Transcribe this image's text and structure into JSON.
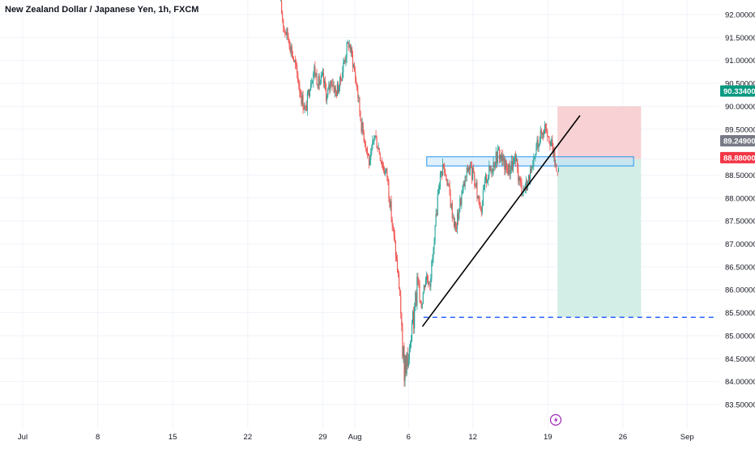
{
  "chart_data": {
    "type": "candlestick",
    "title": "New Zealand Dollar / Japanese Yen, 1h, FXCM",
    "colors": {
      "up": "#26a69a",
      "down": "#ef5350",
      "trendline": "#000000",
      "target_line": "#2962ff",
      "zone_border": "#2196f3",
      "stop_zone": "#f7cfd1",
      "profit_zone": "#d1ece6",
      "price_badge_green": "#089981",
      "price_badge_gray": "#787b86",
      "price_badge_red": "#f23645",
      "event_icon": "#9c27b0"
    },
    "x_axis": {
      "ticks": [
        {
          "label": "Jul",
          "day": 1
        },
        {
          "label": "8",
          "day": 8
        },
        {
          "label": "15",
          "day": 15
        },
        {
          "label": "22",
          "day": 22
        },
        {
          "label": "29",
          "day": 29
        },
        {
          "label": "Aug",
          "day": 32
        },
        {
          "label": "6",
          "day": 37
        },
        {
          "label": "12",
          "day": 43
        },
        {
          "label": "19",
          "day": 50
        },
        {
          "label": "26",
          "day": 57
        },
        {
          "label": "Sep",
          "day": 63
        }
      ]
    },
    "y_axis": {
      "ylim": [
        83.3,
        92.2
      ],
      "ticks": [
        "92.00000",
        "91.50000",
        "91.00000",
        "90.50000",
        "90.00000",
        "89.50000",
        "88.85300",
        "88.50000",
        "88.00000",
        "87.50000",
        "87.00000",
        "86.50000",
        "86.00000",
        "85.50000",
        "85.00000",
        "84.50000",
        "84.00000",
        "83.50000"
      ],
      "price_labels": [
        {
          "value": "90.33400",
          "color": "#089981"
        },
        {
          "value": "89.24900",
          "color": "#787b86"
        },
        {
          "value": "88.88000",
          "color": "#f23645"
        }
      ]
    },
    "price_path": [
      [
        25.0,
        92.3
      ],
      [
        25.4,
        91.7
      ],
      [
        25.8,
        91.5
      ],
      [
        26.2,
        91.1
      ],
      [
        26.6,
        90.7
      ],
      [
        27.0,
        90.2
      ],
      [
        27.4,
        89.9
      ],
      [
        27.8,
        90.5
      ],
      [
        28.2,
        90.8
      ],
      [
        28.6,
        90.5
      ],
      [
        29.0,
        90.6
      ],
      [
        29.4,
        90.2
      ],
      [
        29.8,
        90.6
      ],
      [
        30.2,
        90.3
      ],
      [
        30.6,
        90.5
      ],
      [
        31.0,
        91.0
      ],
      [
        31.4,
        91.4
      ],
      [
        31.8,
        91.0
      ],
      [
        32.2,
        90.4
      ],
      [
        32.6,
        89.6
      ],
      [
        33.0,
        89.2
      ],
      [
        33.4,
        88.7
      ],
      [
        33.8,
        89.4
      ],
      [
        34.2,
        89.1
      ],
      [
        34.6,
        88.7
      ],
      [
        35.0,
        88.5
      ],
      [
        35.4,
        87.6
      ],
      [
        35.8,
        86.8
      ],
      [
        36.2,
        85.9
      ],
      [
        36.6,
        84.4
      ],
      [
        37.0,
        84.8
      ],
      [
        37.4,
        85.6
      ],
      [
        37.8,
        86.2
      ],
      [
        38.2,
        85.7
      ],
      [
        38.6,
        86.3
      ],
      [
        39.0,
        86.2
      ],
      [
        39.4,
        87.0
      ],
      [
        39.8,
        88.3
      ],
      [
        40.2,
        88.7
      ],
      [
        40.6,
        88.4
      ],
      [
        41.0,
        87.8
      ],
      [
        41.4,
        87.3
      ],
      [
        41.8,
        87.9
      ],
      [
        42.2,
        88.3
      ],
      [
        42.6,
        88.7
      ],
      [
        43.0,
        88.5
      ],
      [
        43.4,
        88.1
      ],
      [
        43.8,
        87.8
      ],
      [
        44.2,
        88.4
      ],
      [
        44.6,
        88.6
      ],
      [
        45.0,
        88.8
      ],
      [
        45.4,
        89.0
      ],
      [
        45.8,
        88.8
      ],
      [
        46.2,
        88.6
      ],
      [
        46.6,
        88.7
      ],
      [
        47.0,
        88.8
      ],
      [
        47.4,
        88.3
      ],
      [
        47.8,
        88.2
      ],
      [
        48.2,
        88.4
      ],
      [
        48.6,
        88.6
      ],
      [
        49.0,
        89.2
      ],
      [
        49.4,
        89.4
      ],
      [
        49.8,
        89.6
      ],
      [
        50.2,
        89.3
      ],
      [
        50.5,
        89.0
      ],
      [
        50.8,
        88.6
      ],
      [
        51.0,
        88.8
      ]
    ],
    "trendline": {
      "from": [
        38.3,
        85.2
      ],
      "to": [
        53.0,
        89.8
      ]
    },
    "resistance_zone": {
      "x_from": [
        38.7,
        58.0
      ],
      "y_from": [
        88.7,
        88.9
      ]
    },
    "position_tool": {
      "x_from": 50.9,
      "x_to": 58.7,
      "entry": 88.85,
      "stop": 90.0,
      "target": 85.4
    },
    "target_line": {
      "value": 85.4,
      "x_from": 38.4,
      "x_to": 65.5
    }
  }
}
